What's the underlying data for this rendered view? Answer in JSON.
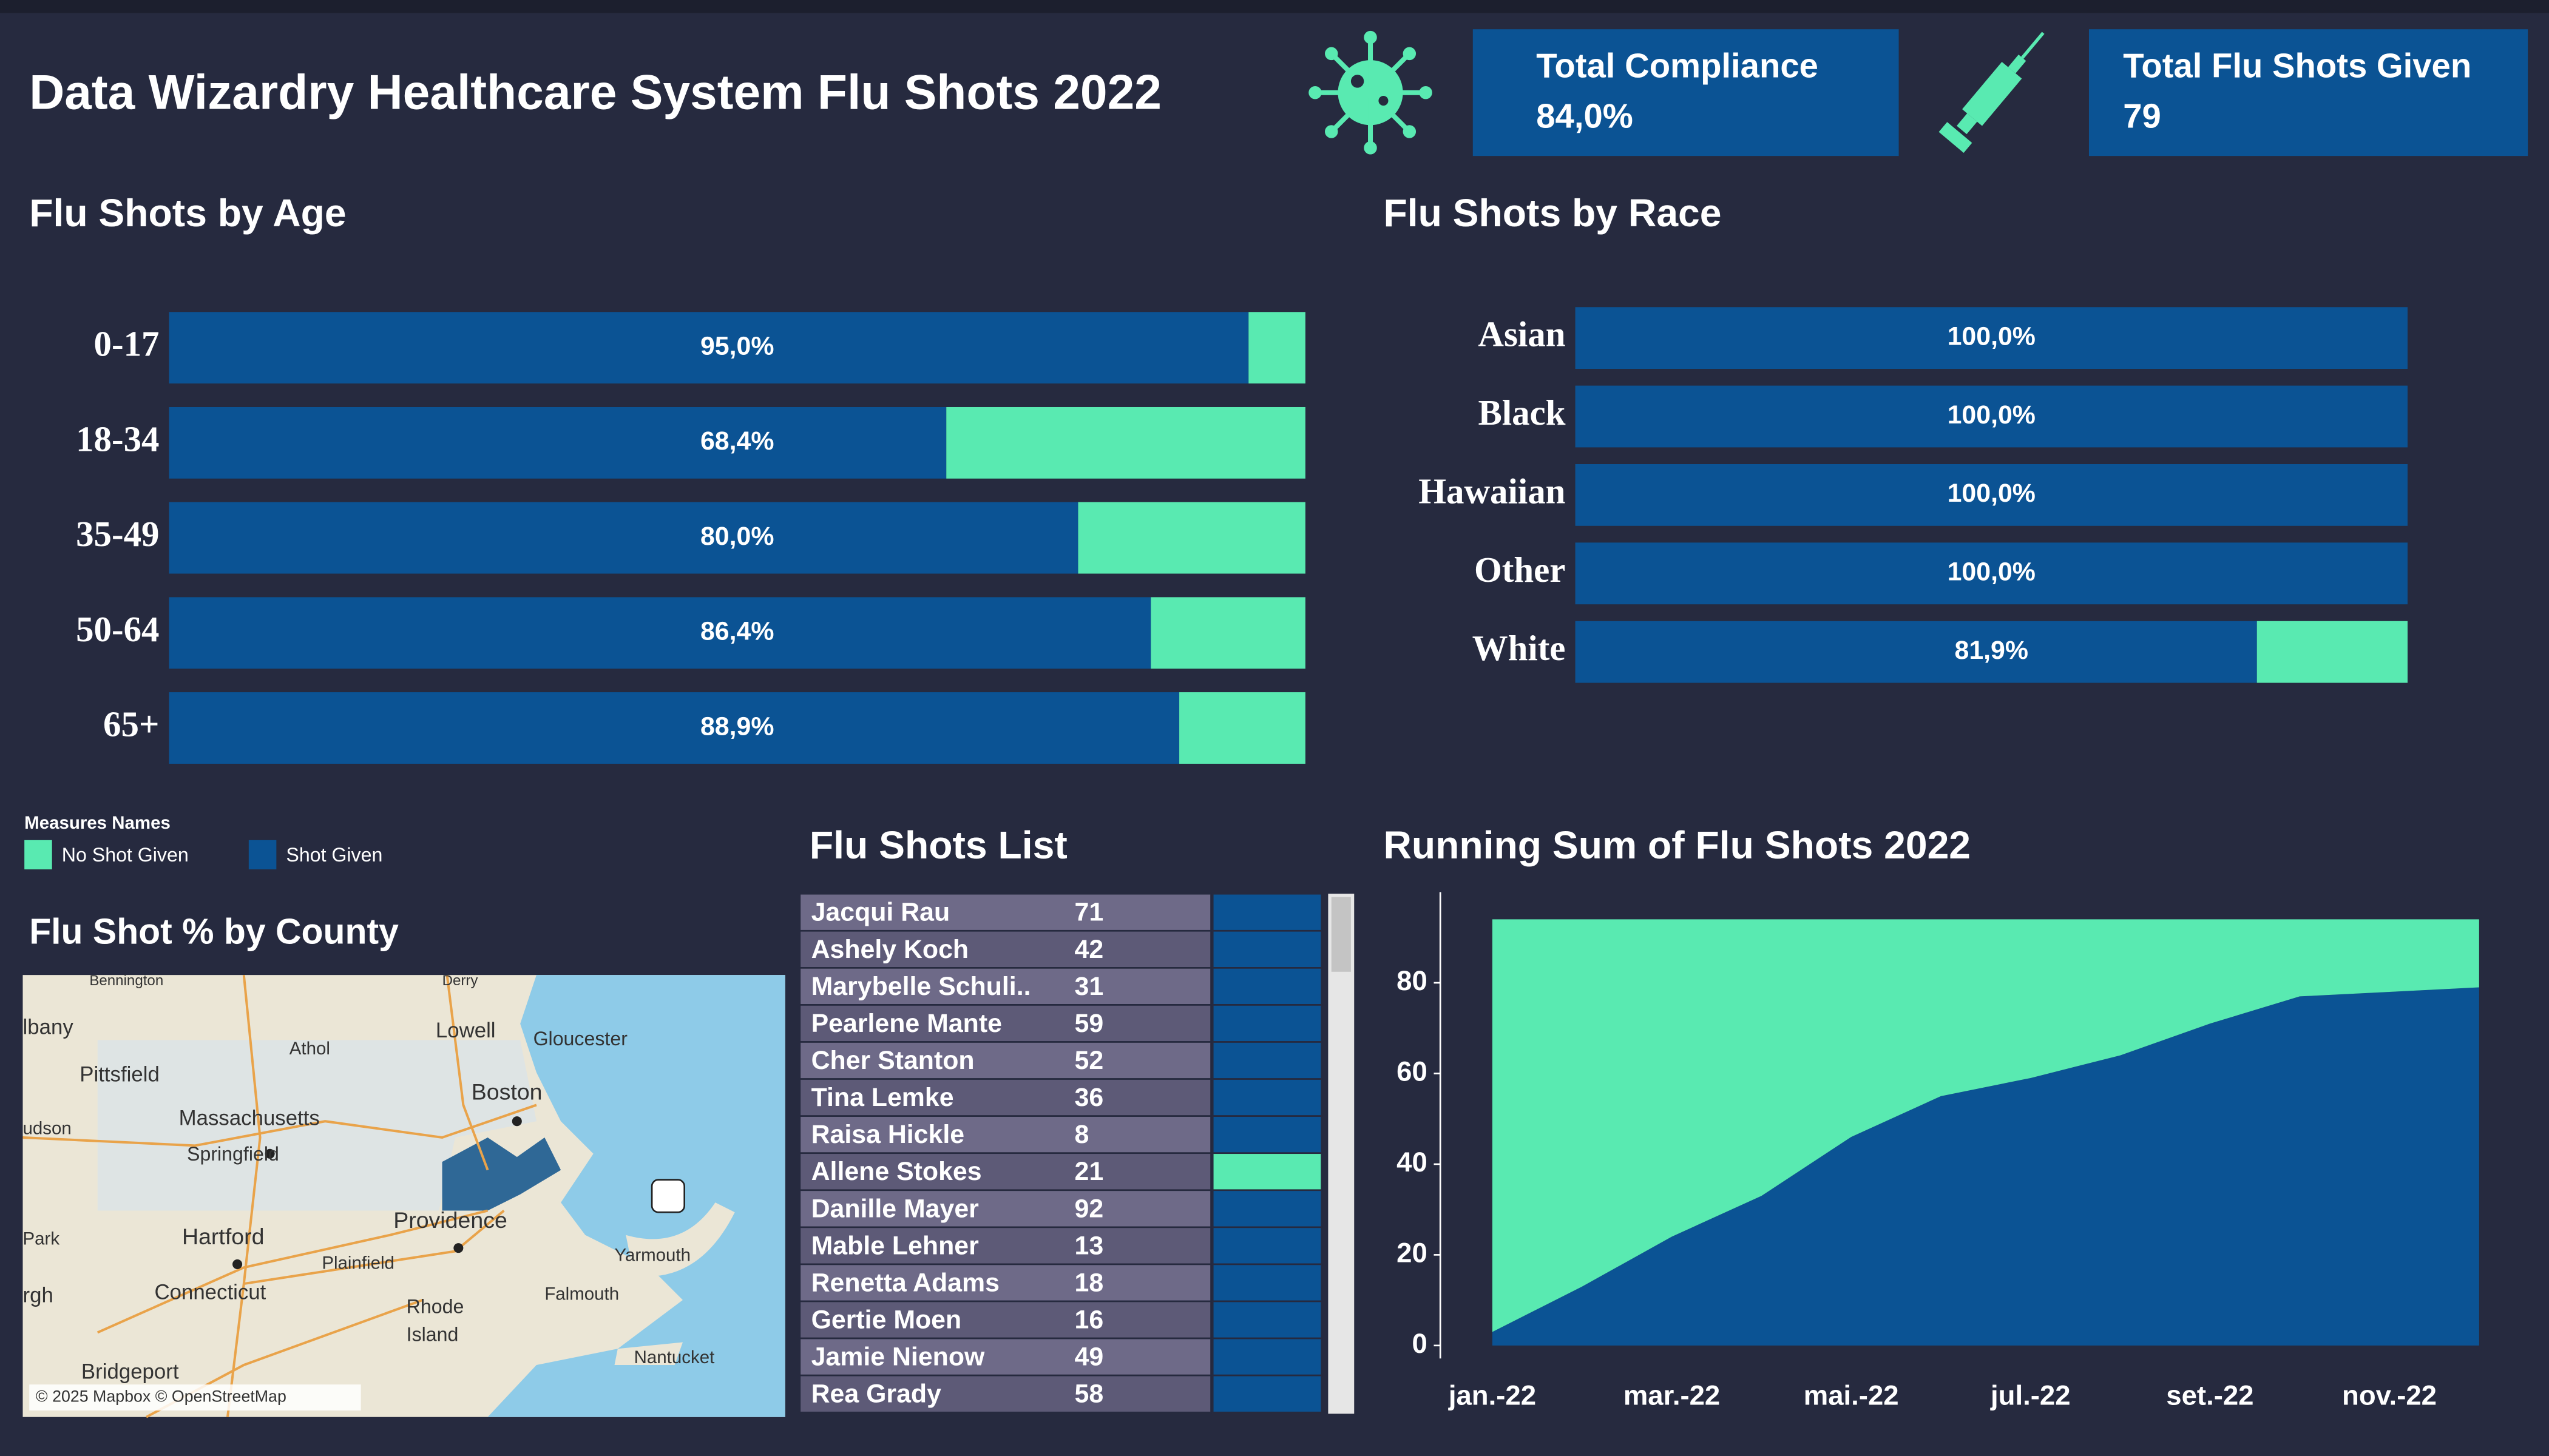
{
  "header": {
    "title": "Data Wizardry  Healthcare System Flu Shots 2022"
  },
  "kpis": [
    {
      "label": "Total Compliance",
      "value": "84,0%"
    },
    {
      "label": "Total Flu Shots Given",
      "value": "79"
    }
  ],
  "chart_data": [
    {
      "type": "hbar",
      "title": "Flu Shots by Age",
      "legend_title": "Measures Names",
      "categories": [
        "0-17",
        "18-34",
        "35-49",
        "50-64",
        "65+"
      ],
      "series": [
        {
          "name": "Shot Given",
          "color": "#0b5394",
          "values": [
            95,
            68.4,
            80,
            86.4,
            88.9
          ],
          "value_labels": [
            "95,0%",
            "68,4%",
            "80,0%",
            "86,4%",
            "88,9%"
          ]
        },
        {
          "name": "No Shot Given",
          "color": "#59eab1",
          "values": [
            5,
            31.6,
            20,
            13.6,
            11.1
          ]
        }
      ],
      "xlim": [
        0,
        100
      ]
    },
    {
      "type": "hbar",
      "title": "Flu Shots by Race",
      "categories": [
        "Asian",
        "Black",
        "Hawaiian",
        "Other",
        "White"
      ],
      "series": [
        {
          "name": "Shot Given",
          "color": "#0b5394",
          "values": [
            100,
            100,
            100,
            100,
            81.9
          ],
          "value_labels": [
            "100,0%",
            "100,0%",
            "100,0%",
            "100,0%",
            "81,9%"
          ]
        },
        {
          "name": "No Shot Given",
          "color": "#59eab1",
          "values": [
            0,
            0,
            0,
            0,
            18.1
          ]
        }
      ],
      "xlim": [
        0,
        100
      ]
    },
    {
      "type": "area",
      "title": "Running Sum of Flu Shots 2022",
      "categories": [
        "jan.-22",
        null,
        "mar.-22",
        null,
        "mai.-22",
        null,
        "jul.-22",
        null,
        "set.-22",
        null,
        "nov.-22",
        null
      ],
      "series": [
        {
          "name": "Shot Given",
          "color": "#0b5394",
          "values": [
            3,
            13,
            24,
            33,
            46,
            55,
            59,
            64,
            71,
            77,
            78,
            79
          ]
        },
        {
          "name": "No Shot Given",
          "color": "#59eab1",
          "values": [
            91,
            81,
            70,
            61,
            48,
            39,
            35,
            30,
            23,
            17,
            16,
            15
          ]
        }
      ],
      "ylim": [
        0,
        100
      ],
      "yticks": [
        0,
        20,
        40,
        60,
        80
      ]
    }
  ],
  "map": {
    "title": "Flu Shot % by County",
    "labels": [
      "Bennington",
      "Derry",
      "lbany",
      "Lowell",
      "Gloucester",
      "Athol",
      "Pittsfield",
      "Boston",
      "Massachusetts",
      "udson",
      "Springfield",
      "Providence",
      "Park",
      "Hartford",
      "Plainfield",
      "Yarmouth",
      "Connecticut",
      "Rhode",
      "Island",
      "Falmouth",
      "rgh",
      "Nantucket",
      "Bridgeport"
    ],
    "attribution": "© 2025 Mapbox © OpenStreetMap"
  },
  "table": {
    "title": "Flu Shots List",
    "rows": [
      {
        "name": "Jacqui Rau",
        "age": 71,
        "color": "#0b5394"
      },
      {
        "name": "Ashely Koch",
        "age": 42,
        "color": "#0b5394"
      },
      {
        "name": "Marybelle Schuli..",
        "age": 31,
        "color": "#0b5394"
      },
      {
        "name": "Pearlene Mante",
        "age": 59,
        "color": "#0b5394"
      },
      {
        "name": "Cher Stanton",
        "age": 52,
        "color": "#0b5394"
      },
      {
        "name": "Tina Lemke",
        "age": 36,
        "color": "#0b5394"
      },
      {
        "name": "Raisa Hickle",
        "age": 8,
        "color": "#0b5394"
      },
      {
        "name": "Allene Stokes",
        "age": 21,
        "color": "#59eab1"
      },
      {
        "name": "Danille Mayer",
        "age": 92,
        "color": "#0b5394"
      },
      {
        "name": "Mable Lehner",
        "age": 13,
        "color": "#0b5394"
      },
      {
        "name": "Renetta Adams",
        "age": 18,
        "color": "#0b5394"
      },
      {
        "name": "Gertie Moen",
        "age": 16,
        "color": "#0b5394"
      },
      {
        "name": "Jamie Nienow",
        "age": 49,
        "color": "#0b5394"
      },
      {
        "name": "Rea Grady",
        "age": 58,
        "color": "#0b5394"
      }
    ]
  }
}
